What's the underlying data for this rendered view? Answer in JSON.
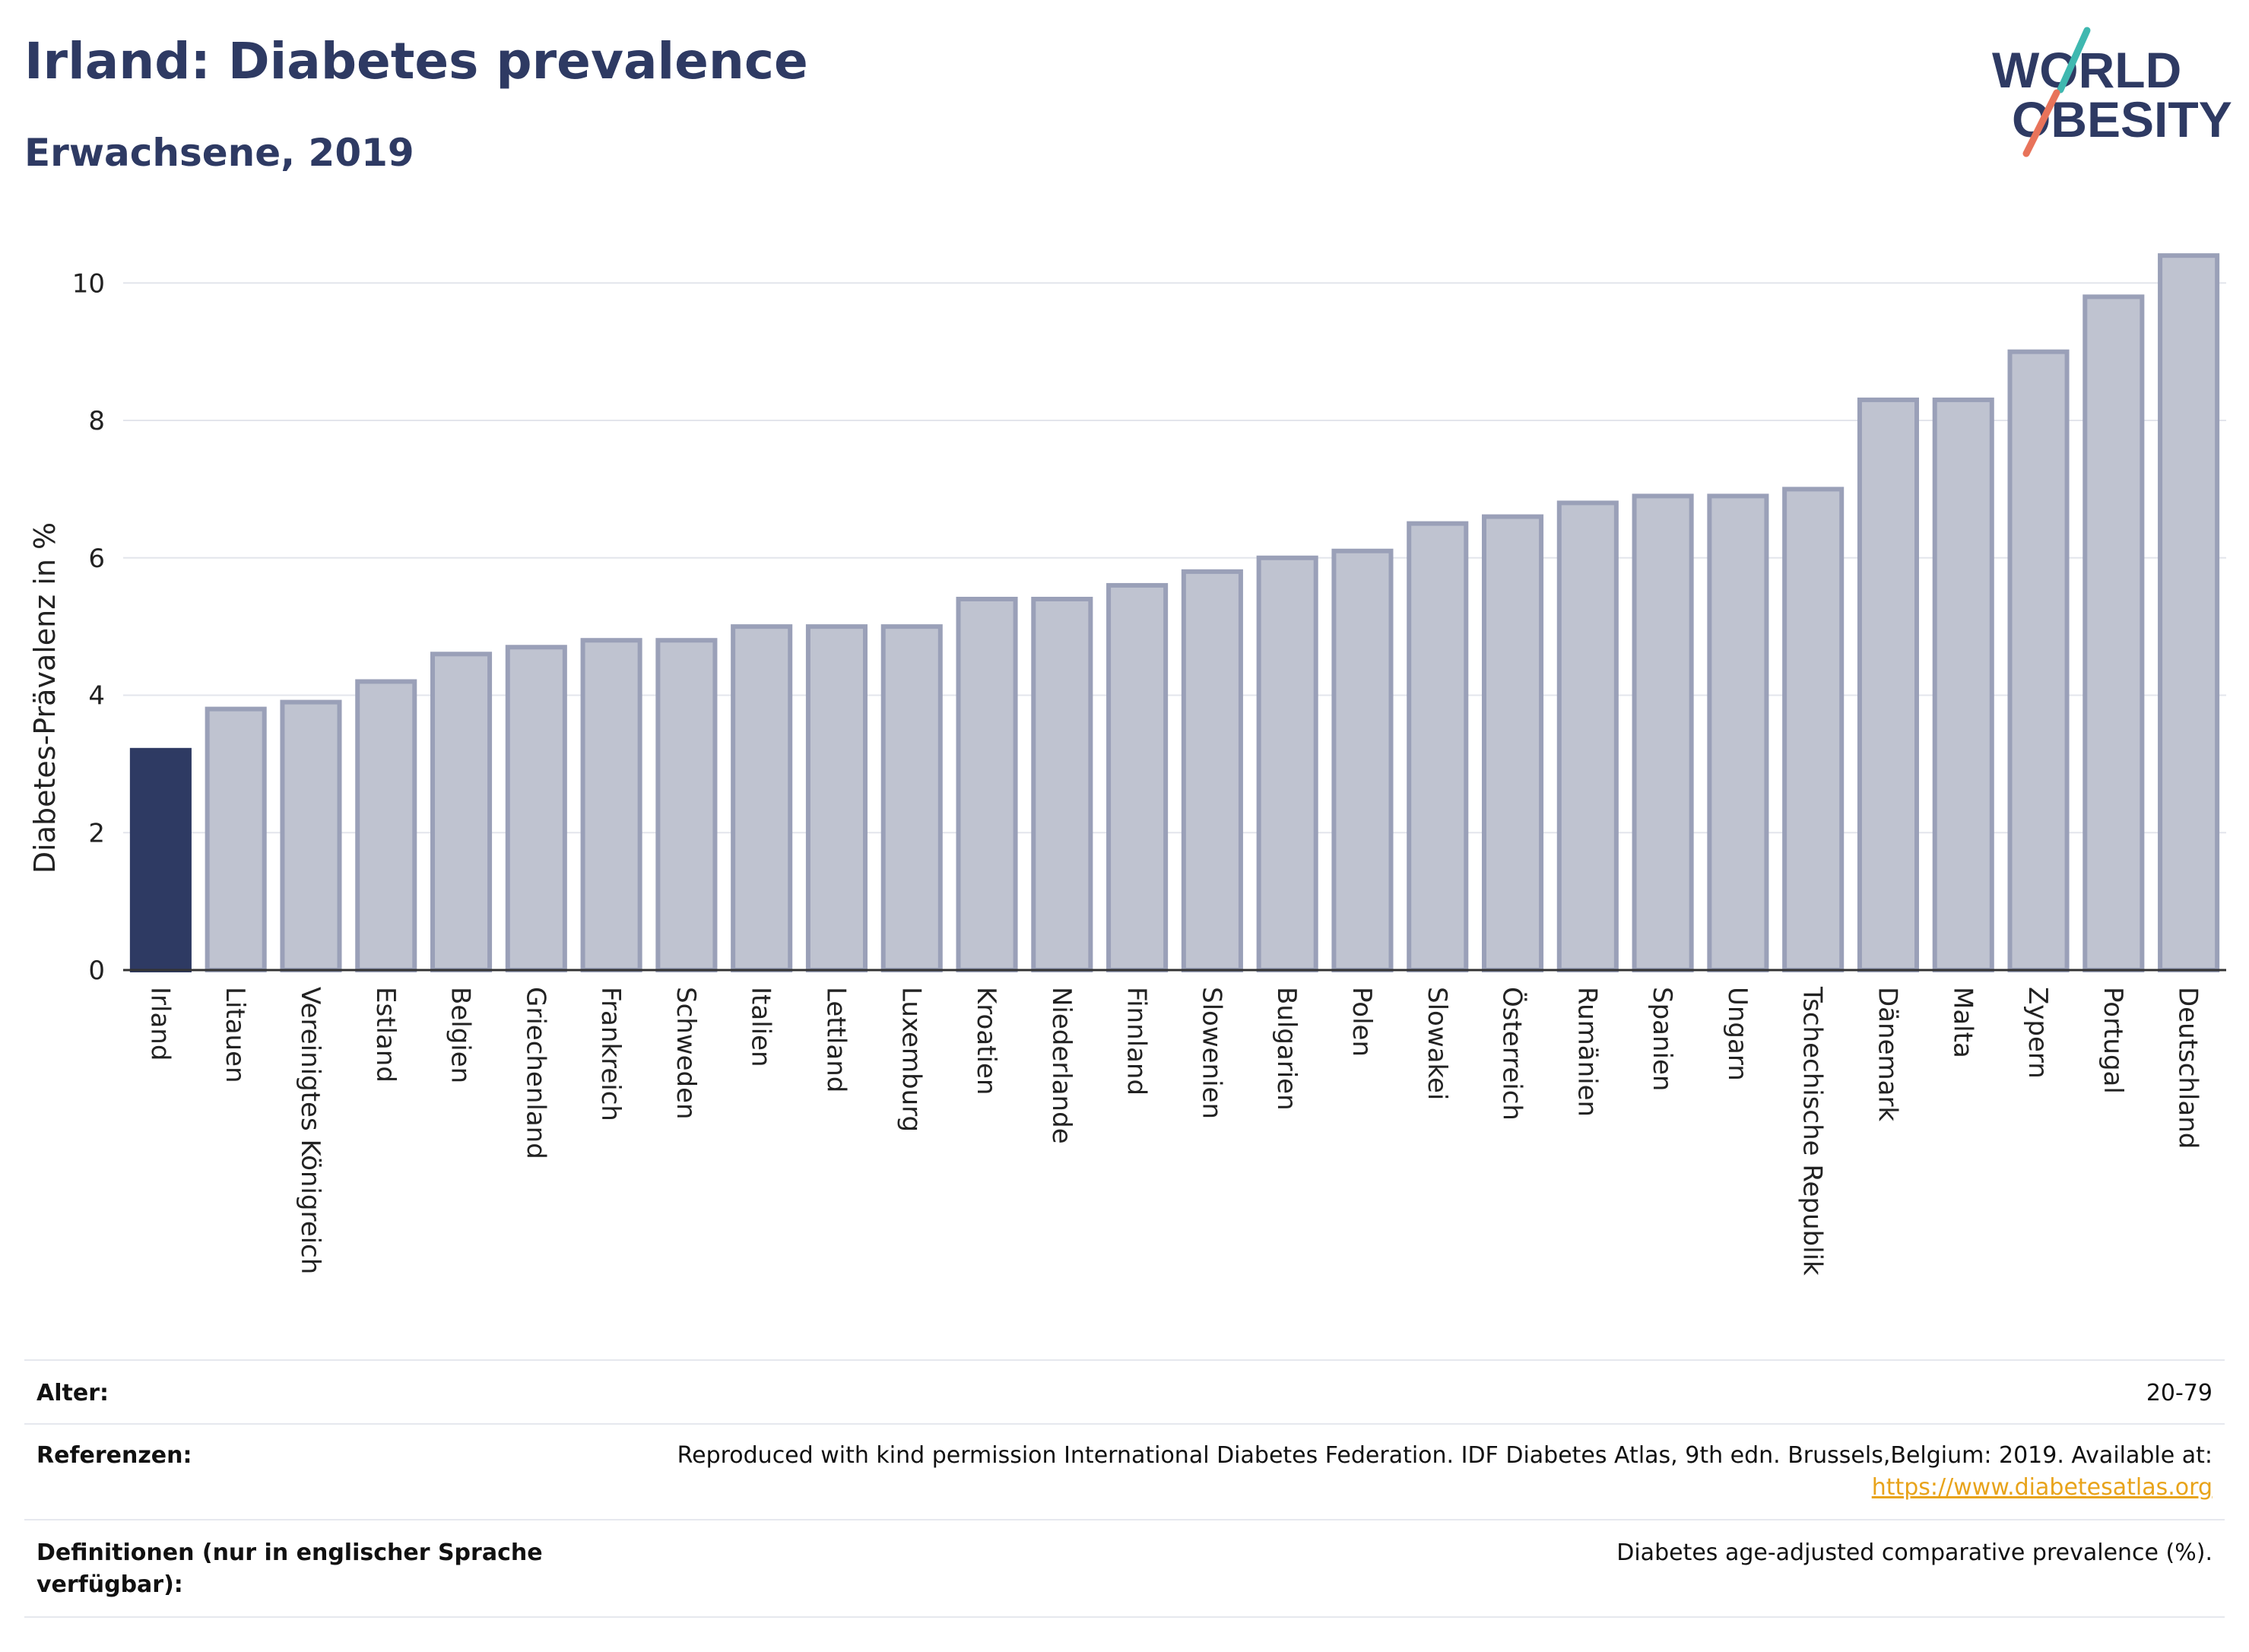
{
  "header": {
    "title": "Irland: Diabetes prevalence",
    "subtitle": "Erwachsene, 2019"
  },
  "logo": {
    "line1": "WORLD",
    "line2": "OBESITY",
    "colors": {
      "text": "#2e3a63",
      "accent_teal": "#3fb8b0",
      "accent_coral": "#e8735a"
    }
  },
  "chart_data": {
    "type": "bar",
    "title": "Irland: Diabetes prevalence",
    "subtitle": "Erwachsene, 2019",
    "ylabel": "Diabetes-Prävalenz in %",
    "xlabel": "",
    "ylim": [
      0,
      10.8
    ],
    "yticks": [
      0,
      2,
      4,
      6,
      8,
      10
    ],
    "grid": true,
    "highlight_category": "Irland",
    "colors": {
      "highlight": "#2e3a63",
      "bar_fill": "#bfc3d0",
      "bar_edge": "#9aa0b8"
    },
    "categories": [
      "Irland",
      "Litauen",
      "Vereinigtes Königreich",
      "Estland",
      "Belgien",
      "Griechenland",
      "Frankreich",
      "Schweden",
      "Italien",
      "Lettland",
      "Luxemburg",
      "Kroatien",
      "Niederlande",
      "Finnland",
      "Slowenien",
      "Bulgarien",
      "Polen",
      "Slowakei",
      "Österreich",
      "Rumänien",
      "Spanien",
      "Ungarn",
      "Tschechische Republik",
      "Dänemark",
      "Malta",
      "Zypern",
      "Portugal",
      "Deutschland"
    ],
    "values": [
      3.2,
      3.8,
      3.9,
      4.2,
      4.6,
      4.7,
      4.8,
      4.8,
      5.0,
      5.0,
      5.0,
      5.4,
      5.4,
      5.6,
      5.8,
      6.0,
      6.1,
      6.5,
      6.6,
      6.8,
      6.9,
      6.9,
      7.0,
      8.3,
      8.3,
      9.0,
      9.8,
      10.4
    ]
  },
  "meta": {
    "age_label": "Alter:",
    "age_value": "20-79",
    "refs_label": "Referenzen:",
    "refs_value": "Reproduced with kind permission International Diabetes Federation. IDF Diabetes Atlas, 9th edn. Brussels,Belgium: 2019. Available at:",
    "refs_link": "https://www.diabetesatlas.org",
    "defs_label": "Definitionen (nur in englischer Sprache verfügbar):",
    "defs_value": "Diabetes age-adjusted comparative prevalence (%)."
  }
}
